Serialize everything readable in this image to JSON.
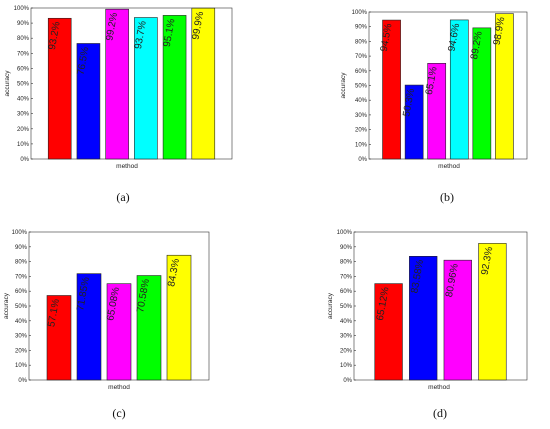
{
  "chart_data": [
    {
      "type": "bar",
      "caption": "(a)",
      "xlabel": "method",
      "ylabel": "accuracy",
      "ylim": [
        0,
        100
      ],
      "yticks": [
        "0%",
        "10%",
        "20%",
        "30%",
        "40%",
        "50%",
        "60%",
        "70%",
        "80%",
        "90%",
        "100%"
      ],
      "grid": false,
      "values": [
        93.2,
        76.5,
        99.2,
        93.7,
        95.1,
        99.9
      ],
      "labels": [
        "93.2%",
        "76.5%",
        "99.2%",
        "93.7%",
        "95.1%",
        "99.9%"
      ],
      "colors": [
        "#ff0000",
        "#0000ff",
        "#ff00ff",
        "#00ffff",
        "#00ff00",
        "#ffff00"
      ]
    },
    {
      "type": "bar",
      "caption": "(b)",
      "xlabel": "method",
      "ylabel": "accuracy",
      "ylim": [
        0,
        100
      ],
      "yticks": [
        "0%",
        "10%",
        "20%",
        "30%",
        "40%",
        "50%",
        "60%",
        "70%",
        "80%",
        "90%",
        "100%"
      ],
      "grid": false,
      "values": [
        94.5,
        50.3,
        65.1,
        94.6,
        89.2,
        98.9
      ],
      "labels": [
        "94.5%",
        "50.3%",
        "65.1%",
        "94.6%",
        "89.2%",
        "98.9%"
      ],
      "colors": [
        "#ff0000",
        "#0000ff",
        "#ff00ff",
        "#00ffff",
        "#00ff00",
        "#ffff00"
      ]
    },
    {
      "type": "bar",
      "caption": "(c)",
      "xlabel": "method",
      "ylabel": "accuracy",
      "ylim": [
        0,
        100
      ],
      "yticks": [
        "0%",
        "10%",
        "20%",
        "30%",
        "40%",
        "50%",
        "60%",
        "70%",
        "80%",
        "90%",
        "100%"
      ],
      "grid": false,
      "values": [
        57.1,
        71.85,
        65.08,
        70.58,
        84.3
      ],
      "labels": [
        "57.1%",
        "71.85%",
        "65.08%",
        "70.58%",
        "84.3%"
      ],
      "colors": [
        "#ff0000",
        "#0000ff",
        "#ff00ff",
        "#00ff00",
        "#ffff00"
      ]
    },
    {
      "type": "bar",
      "caption": "(d)",
      "xlabel": "method",
      "ylabel": "accuracy",
      "ylim": [
        0,
        100
      ],
      "yticks": [
        "0%",
        "10%",
        "20%",
        "30%",
        "40%",
        "50%",
        "60%",
        "70%",
        "80%",
        "90%",
        "100%"
      ],
      "grid": false,
      "values": [
        65.12,
        83.58,
        80.96,
        92.3
      ],
      "labels": [
        "65.12%",
        "83.58%",
        "80.96%",
        "92.3%"
      ],
      "colors": [
        "#ff0000",
        "#0000ff",
        "#ff00ff",
        "#ffff00"
      ]
    }
  ]
}
